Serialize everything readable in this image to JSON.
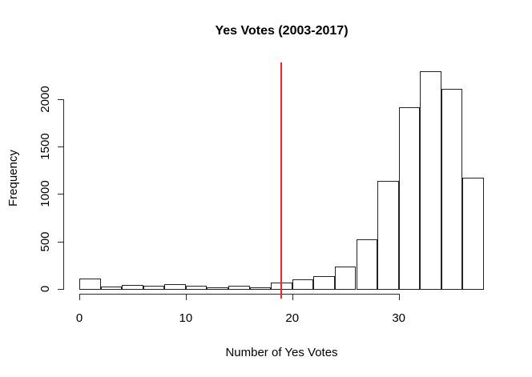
{
  "chart_data": {
    "type": "bar",
    "subtype": "histogram",
    "title": "Yes Votes (2003-2017)",
    "xlabel": "Number of Yes Votes",
    "ylabel": "Frequency",
    "bin_edges": [
      0,
      2,
      4,
      6,
      8,
      10,
      12,
      14,
      16,
      18,
      20,
      22,
      24,
      26,
      28,
      30,
      32,
      34,
      36,
      38
    ],
    "frequencies": [
      110,
      25,
      40,
      30,
      50,
      30,
      20,
      30,
      20,
      70,
      100,
      135,
      240,
      520,
      1140,
      1910,
      2290,
      2110,
      1170
    ],
    "x_ticks": [
      0,
      10,
      20,
      30
    ],
    "y_ticks": [
      0,
      500,
      1000,
      1500,
      2000
    ],
    "xlim": [
      0,
      38
    ],
    "ylim": [
      0,
      2300
    ],
    "grid": false,
    "legend": "none",
    "reference_line": {
      "orientation": "vertical",
      "x": 19,
      "color": "#ff2222"
    },
    "bar_fill": "#ffffff",
    "bar_border": "#222222",
    "axis_color": "#2a2a2a",
    "background": "#ffffff"
  }
}
